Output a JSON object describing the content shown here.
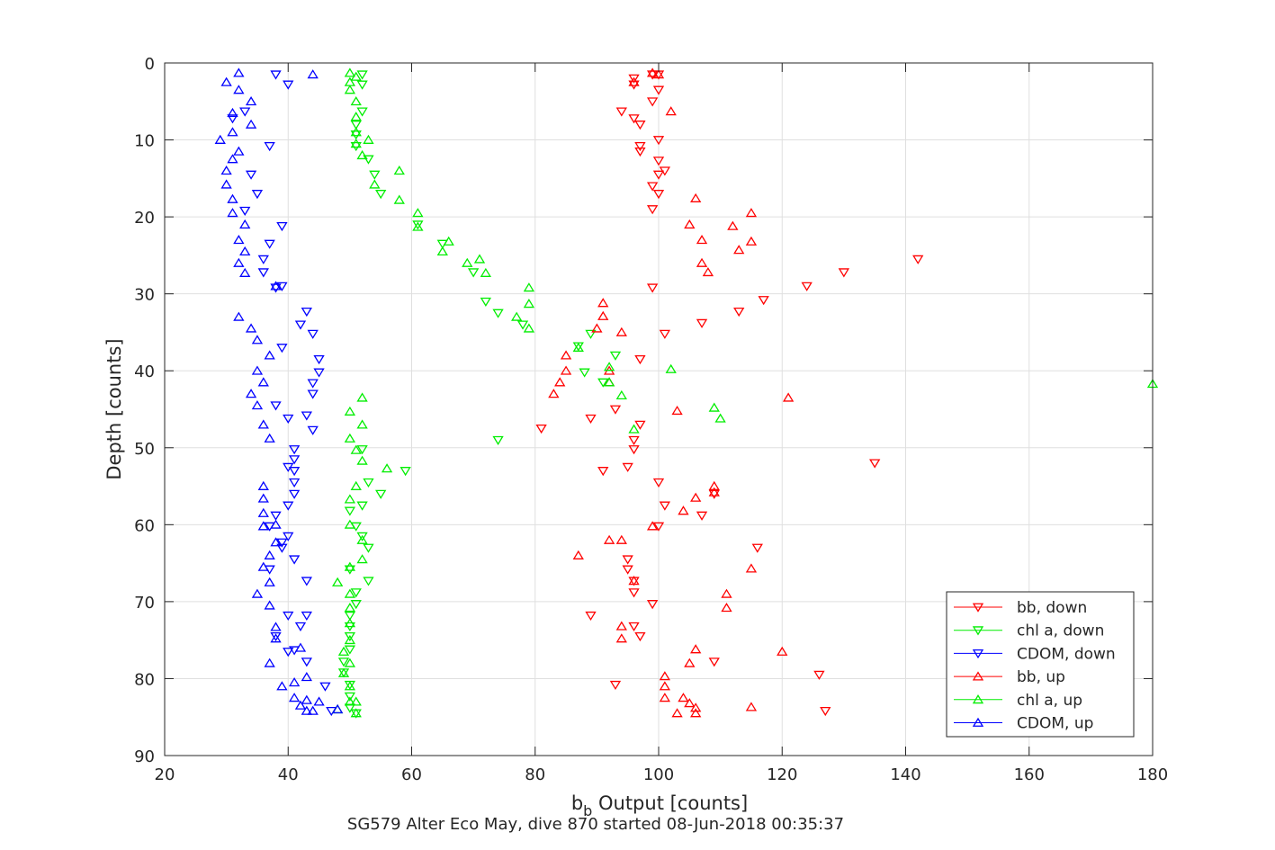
{
  "chart_data": {
    "type": "scatter",
    "xlabel_main": "b",
    "xlabel_sub": "b",
    "xlabel_rest": " Output [counts]",
    "ylabel": "Depth [counts]",
    "caption": "SG579 Alter Eco May, dive 870 started 08-Jun-2018 00:35:37",
    "xlim": [
      20,
      180
    ],
    "ylim": [
      0,
      90
    ],
    "y_reversed": true,
    "grid": true,
    "legend_position": "bottom-right",
    "x_ticks": [
      20,
      40,
      60,
      80,
      100,
      120,
      140,
      160,
      180
    ],
    "y_ticks": [
      0,
      10,
      20,
      30,
      40,
      50,
      60,
      70,
      80,
      90
    ],
    "series": [
      {
        "name": "bb, down",
        "color": "#ff0000",
        "marker": "triangle-down",
        "points": [
          [
            99,
            1.5
          ],
          [
            100,
            1.5
          ],
          [
            96,
            2
          ],
          [
            96,
            2.8
          ],
          [
            100,
            3.5
          ],
          [
            99,
            5
          ],
          [
            94,
            6.3
          ],
          [
            96,
            7.2
          ],
          [
            97,
            8
          ],
          [
            100,
            10
          ],
          [
            97,
            10.8
          ],
          [
            97,
            11.5
          ],
          [
            100,
            12.7
          ],
          [
            101,
            14
          ],
          [
            100,
            14.5
          ],
          [
            99,
            16
          ],
          [
            100,
            17
          ],
          [
            99,
            19
          ],
          [
            142,
            25.5
          ],
          [
            130,
            27.2
          ],
          [
            124,
            29
          ],
          [
            99,
            29.2
          ],
          [
            117,
            30.8
          ],
          [
            113,
            32.3
          ],
          [
            107,
            33.8
          ],
          [
            101,
            35.2
          ],
          [
            97,
            38.5
          ],
          [
            93,
            45
          ],
          [
            89,
            46.2
          ],
          [
            97,
            47
          ],
          [
            81,
            47.5
          ],
          [
            96,
            49
          ],
          [
            96,
            50.2
          ],
          [
            135,
            52
          ],
          [
            95,
            52.5
          ],
          [
            91,
            53
          ],
          [
            100,
            54.5
          ],
          [
            101,
            57.5
          ],
          [
            107,
            58.8
          ],
          [
            109,
            56
          ],
          [
            100,
            60.2
          ],
          [
            116,
            63
          ],
          [
            95,
            64.5
          ],
          [
            95,
            65.8
          ],
          [
            96,
            67.3
          ],
          [
            96,
            68.8
          ],
          [
            99,
            70.3
          ],
          [
            89,
            71.8
          ],
          [
            96,
            73.2
          ],
          [
            97,
            74.5
          ],
          [
            109,
            77.8
          ],
          [
            126,
            79.5
          ],
          [
            93,
            80.8
          ],
          [
            127,
            84.2
          ]
        ]
      },
      {
        "name": "chl a, down",
        "color": "#00ee00",
        "marker": "triangle-down",
        "points": [
          [
            52,
            1.5
          ],
          [
            52,
            2.8
          ],
          [
            52,
            6.3
          ],
          [
            51,
            8
          ],
          [
            51,
            9.3
          ],
          [
            51,
            10.8
          ],
          [
            53,
            12.5
          ],
          [
            54,
            14.5
          ],
          [
            55,
            17
          ],
          [
            61,
            21
          ],
          [
            65,
            23.5
          ],
          [
            70,
            27.2
          ],
          [
            72,
            31
          ],
          [
            74,
            32.5
          ],
          [
            78,
            34
          ],
          [
            89,
            35.2
          ],
          [
            87,
            36.8
          ],
          [
            93,
            38
          ],
          [
            88,
            40.2
          ],
          [
            91,
            41.5
          ],
          [
            74,
            49
          ],
          [
            52,
            50.2
          ],
          [
            59,
            53
          ],
          [
            53,
            54.5
          ],
          [
            55,
            56
          ],
          [
            52,
            57.5
          ],
          [
            50,
            58.2
          ],
          [
            51,
            60.2
          ],
          [
            52,
            61.5
          ],
          [
            53,
            63
          ],
          [
            50,
            65.8
          ],
          [
            53,
            67.3
          ],
          [
            51,
            68.8
          ],
          [
            51,
            70.3
          ],
          [
            50,
            71.8
          ],
          [
            50,
            73.2
          ],
          [
            50,
            74.5
          ],
          [
            50,
            76.2
          ],
          [
            49,
            77.8
          ],
          [
            49,
            79.2
          ],
          [
            50,
            80.8
          ],
          [
            50,
            82.3
          ],
          [
            50,
            83.8
          ],
          [
            51,
            84.5
          ]
        ]
      },
      {
        "name": "CDOM, down",
        "color": "#0000ff",
        "marker": "triangle-down",
        "points": [
          [
            38,
            1.5
          ],
          [
            40,
            2.8
          ],
          [
            33,
            6.3
          ],
          [
            31,
            7.2
          ],
          [
            37,
            10.8
          ],
          [
            34,
            14.5
          ],
          [
            35,
            17
          ],
          [
            33,
            19.2
          ],
          [
            39,
            21.2
          ],
          [
            37,
            23.5
          ],
          [
            36,
            25.5
          ],
          [
            36,
            27.2
          ],
          [
            39,
            29
          ],
          [
            38,
            29.2
          ],
          [
            43,
            32.3
          ],
          [
            42,
            34
          ],
          [
            44,
            35.2
          ],
          [
            39,
            37
          ],
          [
            45,
            38.5
          ],
          [
            45,
            40.2
          ],
          [
            44,
            41.6
          ],
          [
            44,
            43
          ],
          [
            38,
            44.5
          ],
          [
            43,
            45.8
          ],
          [
            40,
            46.2
          ],
          [
            44,
            47.7
          ],
          [
            41,
            50.2
          ],
          [
            41,
            51.5
          ],
          [
            40,
            52.5
          ],
          [
            41,
            53
          ],
          [
            41,
            54.5
          ],
          [
            41,
            56
          ],
          [
            40,
            57.5
          ],
          [
            38,
            58.8
          ],
          [
            37,
            60.2
          ],
          [
            40,
            61.5
          ],
          [
            39,
            62.3
          ],
          [
            39,
            63
          ],
          [
            41,
            64.5
          ],
          [
            37,
            65.8
          ],
          [
            43,
            67.3
          ],
          [
            40,
            71.8
          ],
          [
            43,
            71.8
          ],
          [
            42,
            73.2
          ],
          [
            38,
            74.5
          ],
          [
            41,
            76.3
          ],
          [
            40,
            76.5
          ],
          [
            43,
            77.8
          ],
          [
            46,
            81
          ],
          [
            47,
            84.2
          ]
        ]
      },
      {
        "name": "bb, up",
        "color": "#ff0000",
        "marker": "triangle-up",
        "points": [
          [
            100,
            1.5
          ],
          [
            99,
            1.3
          ],
          [
            96,
            2.5
          ],
          [
            102,
            6.3
          ],
          [
            106,
            17.6
          ],
          [
            115,
            19.5
          ],
          [
            105,
            21
          ],
          [
            112,
            21.2
          ],
          [
            107,
            23
          ],
          [
            115,
            23.2
          ],
          [
            113,
            24.3
          ],
          [
            107,
            26
          ],
          [
            108,
            27.2
          ],
          [
            91,
            31.2
          ],
          [
            91,
            32.9
          ],
          [
            90,
            34.5
          ],
          [
            94,
            35
          ],
          [
            85,
            38
          ],
          [
            85,
            40
          ],
          [
            84,
            41.5
          ],
          [
            92,
            40
          ],
          [
            92,
            41.5
          ],
          [
            83,
            43
          ],
          [
            121,
            43.5
          ],
          [
            103,
            45.2
          ],
          [
            92,
            62
          ],
          [
            87,
            64
          ],
          [
            94,
            62
          ],
          [
            106,
            56.5
          ],
          [
            104,
            58.2
          ],
          [
            109,
            55
          ],
          [
            109,
            55.8
          ],
          [
            99,
            60.2
          ],
          [
            111,
            69
          ],
          [
            111,
            70.8
          ],
          [
            94,
            73.2
          ],
          [
            94,
            74.8
          ],
          [
            106,
            76.2
          ],
          [
            105,
            78
          ],
          [
            120,
            76.5
          ],
          [
            101,
            79.7
          ],
          [
            101,
            81
          ],
          [
            101,
            82.5
          ],
          [
            104,
            82.5
          ],
          [
            105,
            83.2
          ],
          [
            106,
            83.8
          ],
          [
            106,
            84.5
          ],
          [
            103,
            84.5
          ],
          [
            115,
            83.7
          ],
          [
            96,
            67.3
          ],
          [
            115,
            65.7
          ]
        ]
      },
      {
        "name": "chl a, up",
        "color": "#00ee00",
        "marker": "triangle-up",
        "points": [
          [
            50,
            1.3
          ],
          [
            51,
            1.8
          ],
          [
            50,
            2.5
          ],
          [
            50,
            3.5
          ],
          [
            51,
            5
          ],
          [
            51,
            7
          ],
          [
            51,
            9
          ],
          [
            51,
            10.5
          ],
          [
            52,
            12
          ],
          [
            53,
            10
          ],
          [
            58,
            14
          ],
          [
            54,
            15.8
          ],
          [
            58,
            17.8
          ],
          [
            61,
            19.5
          ],
          [
            61,
            21.3
          ],
          [
            66,
            23.2
          ],
          [
            65,
            24.5
          ],
          [
            71,
            25.5
          ],
          [
            69,
            26
          ],
          [
            72,
            27.3
          ],
          [
            79,
            29.2
          ],
          [
            79,
            31.3
          ],
          [
            77,
            33
          ],
          [
            79,
            34.5
          ],
          [
            87,
            37
          ],
          [
            92,
            39.5
          ],
          [
            102,
            39.8
          ],
          [
            92,
            41.5
          ],
          [
            94,
            43.2
          ],
          [
            180,
            41.7
          ],
          [
            52,
            43.5
          ],
          [
            109,
            44.8
          ],
          [
            110,
            46.2
          ],
          [
            50,
            45.3
          ],
          [
            52,
            47
          ],
          [
            96,
            47.6
          ],
          [
            50,
            48.8
          ],
          [
            51,
            50.3
          ],
          [
            52,
            51.7
          ],
          [
            56,
            52.7
          ],
          [
            51,
            55
          ],
          [
            50,
            56.7
          ],
          [
            50,
            60
          ],
          [
            52,
            62
          ],
          [
            52,
            64.5
          ],
          [
            50,
            65.5
          ],
          [
            48,
            67.5
          ],
          [
            50,
            69
          ],
          [
            50,
            70.8
          ],
          [
            50,
            72.8
          ],
          [
            50,
            75
          ],
          [
            49,
            76.5
          ],
          [
            50,
            78
          ],
          [
            49,
            79.3
          ],
          [
            50,
            81
          ],
          [
            50,
            83
          ],
          [
            51,
            83
          ],
          [
            48,
            84
          ],
          [
            51,
            84.5
          ]
        ]
      },
      {
        "name": "CDOM, up",
        "color": "#0000ff",
        "marker": "triangle-up",
        "points": [
          [
            32,
            1.3
          ],
          [
            44,
            1.5
          ],
          [
            30,
            2.5
          ],
          [
            32,
            3.5
          ],
          [
            34,
            5
          ],
          [
            31,
            6.5
          ],
          [
            34,
            8
          ],
          [
            31,
            9
          ],
          [
            29,
            10
          ],
          [
            32,
            11.5
          ],
          [
            31,
            12.5
          ],
          [
            30,
            14
          ],
          [
            30,
            15.8
          ],
          [
            31,
            17.7
          ],
          [
            31,
            19.5
          ],
          [
            33,
            21
          ],
          [
            32,
            23
          ],
          [
            33,
            24.5
          ],
          [
            32,
            26
          ],
          [
            33,
            27.3
          ],
          [
            38,
            29
          ],
          [
            32,
            33
          ],
          [
            34,
            34.5
          ],
          [
            35,
            36
          ],
          [
            37,
            38
          ],
          [
            35,
            40
          ],
          [
            36,
            41.5
          ],
          [
            34,
            43
          ],
          [
            35,
            44.5
          ],
          [
            36,
            47
          ],
          [
            37,
            48.8
          ],
          [
            36,
            55
          ],
          [
            36,
            56.6
          ],
          [
            36,
            58.5
          ],
          [
            36,
            60.2
          ],
          [
            38,
            60
          ],
          [
            38,
            62.3
          ],
          [
            37,
            64
          ],
          [
            36,
            65.5
          ],
          [
            37,
            67.5
          ],
          [
            35,
            69
          ],
          [
            37,
            70.5
          ],
          [
            38,
            73.3
          ],
          [
            38,
            74.8
          ],
          [
            42,
            76
          ],
          [
            37,
            78
          ],
          [
            39,
            81
          ],
          [
            41,
            80.5
          ],
          [
            41,
            82.5
          ],
          [
            43,
            79.8
          ],
          [
            43,
            82.8
          ],
          [
            45,
            83
          ],
          [
            42,
            83.5
          ],
          [
            43,
            84.2
          ],
          [
            44,
            84.2
          ],
          [
            48,
            84
          ]
        ]
      }
    ]
  }
}
